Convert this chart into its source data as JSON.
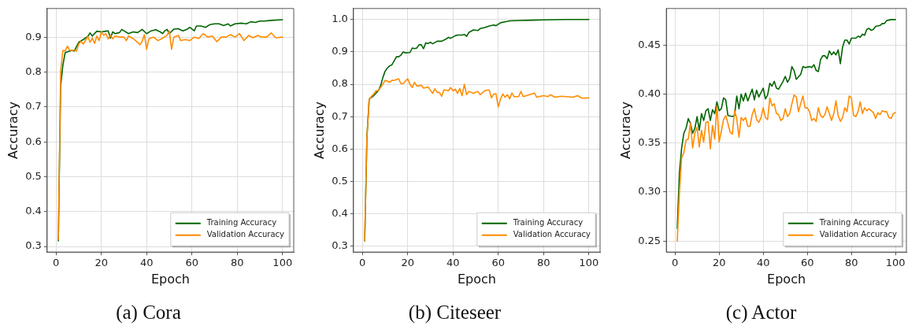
{
  "chart_data": [
    {
      "type": "line",
      "title": "(a) Cora",
      "xlabel": "Epoch",
      "ylabel": "Accuracy",
      "xlim": [
        -3.95,
        104.95
      ],
      "ylim": [
        0.284,
        0.982
      ],
      "xticks": [
        0,
        20,
        40,
        60,
        80,
        100
      ],
      "yticks": [
        {
          "value": 0.3,
          "label": "0.3"
        },
        {
          "value": 0.4,
          "label": "0.4"
        },
        {
          "value": 0.5,
          "label": "0.5"
        },
        {
          "value": 0.6,
          "label": "0.6"
        },
        {
          "value": 0.7,
          "label": "0.7"
        },
        {
          "value": 0.8,
          "label": "0.8"
        },
        {
          "value": 0.9,
          "label": "0.9"
        }
      ],
      "grid": true,
      "legend": "bottom right",
      "marker": "none",
      "line_style": "solid",
      "series": [
        {
          "name": "Training Accuracy",
          "color": "#006400",
          "x": [
            1,
            2,
            3,
            4,
            5,
            6,
            7,
            8,
            10,
            12,
            14,
            15,
            16,
            18,
            20,
            22,
            23,
            24,
            25,
            26,
            28,
            29,
            30,
            32,
            34,
            36,
            38,
            40,
            42,
            44,
            46,
            47,
            48,
            49,
            50,
            52,
            54,
            56,
            58,
            59,
            61,
            62,
            64,
            66,
            68,
            70,
            72,
            74,
            76,
            77,
            79,
            82,
            84,
            86,
            88,
            90,
            92,
            95,
            100
          ],
          "values": [
            0.316,
            0.76,
            0.82,
            0.855,
            0.858,
            0.86,
            0.862,
            0.86,
            0.885,
            0.893,
            0.902,
            0.912,
            0.903,
            0.917,
            0.915,
            0.917,
            0.918,
            0.897,
            0.915,
            0.91,
            0.913,
            0.922,
            0.918,
            0.91,
            0.915,
            0.913,
            0.922,
            0.91,
            0.918,
            0.921,
            0.915,
            0.91,
            0.918,
            0.922,
            0.91,
            0.923,
            0.924,
            0.918,
            0.923,
            0.928,
            0.918,
            0.932,
            0.932,
            0.928,
            0.936,
            0.938,
            0.938,
            0.933,
            0.938,
            0.932,
            0.938,
            0.94,
            0.938,
            0.944,
            0.942,
            0.946,
            0.946,
            0.948,
            0.95
          ]
        },
        {
          "name": "Validation Accuracy",
          "color": "#ff8c00",
          "x": [
            1,
            2,
            3,
            4,
            5,
            6,
            8,
            9,
            10,
            11,
            12,
            14,
            15,
            16,
            17,
            18,
            19,
            20,
            21,
            22,
            23,
            24,
            25,
            26,
            28,
            30,
            31,
            32,
            34,
            36,
            37,
            38,
            39,
            40,
            41,
            43,
            45,
            47,
            49,
            50,
            51,
            52,
            54,
            55,
            57,
            59,
            61,
            63,
            65,
            67,
            69,
            71,
            73,
            75,
            77,
            79,
            81,
            83,
            85,
            87,
            89,
            91,
            93,
            95,
            97,
            100
          ],
          "values": [
            0.32,
            0.8,
            0.862,
            0.86,
            0.874,
            0.862,
            0.862,
            0.86,
            0.88,
            0.888,
            0.88,
            0.902,
            0.885,
            0.897,
            0.882,
            0.903,
            0.89,
            0.915,
            0.905,
            0.91,
            0.895,
            0.905,
            0.895,
            0.903,
            0.9,
            0.9,
            0.89,
            0.903,
            0.896,
            0.885,
            0.878,
            0.888,
            0.907,
            0.865,
            0.895,
            0.9,
            0.89,
            0.897,
            0.905,
            0.918,
            0.865,
            0.9,
            0.905,
            0.89,
            0.893,
            0.89,
            0.9,
            0.896,
            0.91,
            0.9,
            0.903,
            0.887,
            0.9,
            0.9,
            0.907,
            0.9,
            0.91,
            0.89,
            0.905,
            0.898,
            0.905,
            0.9,
            0.9,
            0.912,
            0.898,
            0.9
          ]
        }
      ]
    },
    {
      "type": "line",
      "title": "(b) Citeseer",
      "xlabel": "Epoch",
      "ylabel": "Accuracy",
      "xlim": [
        -3.95,
        104.95
      ],
      "ylim": [
        0.282,
        1.034
      ],
      "xticks": [
        0,
        20,
        40,
        60,
        80,
        100
      ],
      "yticks": [
        {
          "value": 0.3,
          "label": "0.3"
        },
        {
          "value": 0.4,
          "label": "0.4"
        },
        {
          "value": 0.5,
          "label": "0.5"
        },
        {
          "value": 0.6,
          "label": "0.6"
        },
        {
          "value": 0.7,
          "label": "0.7"
        },
        {
          "value": 0.8,
          "label": "0.8"
        },
        {
          "value": 0.9,
          "label": "0.9"
        },
        {
          "value": 1.0,
          "label": "1.0"
        }
      ],
      "grid": true,
      "legend": "bottom right",
      "marker": "none",
      "line_style": "solid",
      "series": [
        {
          "name": "Training Accuracy",
          "color": "#006400",
          "x": [
            1,
            2,
            3,
            5,
            7,
            8,
            9,
            10,
            11,
            12,
            13,
            14,
            15,
            16,
            17,
            18,
            19,
            21,
            22,
            23,
            24,
            25,
            26,
            27,
            28,
            29,
            30,
            31,
            33,
            35,
            37,
            38,
            39,
            41,
            42,
            44,
            45,
            46,
            47,
            49,
            51,
            52,
            54,
            56,
            58,
            59,
            61,
            63,
            65,
            70,
            75,
            80,
            90,
            100
          ],
          "values": [
            0.316,
            0.64,
            0.755,
            0.765,
            0.78,
            0.795,
            0.82,
            0.84,
            0.85,
            0.857,
            0.86,
            0.872,
            0.885,
            0.885,
            0.89,
            0.9,
            0.897,
            0.898,
            0.912,
            0.91,
            0.912,
            0.922,
            0.922,
            0.91,
            0.928,
            0.926,
            0.93,
            0.925,
            0.933,
            0.933,
            0.94,
            0.945,
            0.942,
            0.95,
            0.952,
            0.952,
            0.954,
            0.948,
            0.96,
            0.968,
            0.966,
            0.972,
            0.975,
            0.98,
            0.983,
            0.981,
            0.99,
            0.993,
            0.996,
            0.997,
            0.998,
            0.999,
            1.0,
            1.0
          ]
        },
        {
          "name": "Validation Accuracy",
          "color": "#ff8c00",
          "x": [
            1,
            2,
            3,
            5,
            6,
            7,
            9,
            10,
            11,
            12,
            13,
            14,
            15,
            16,
            17,
            18,
            19,
            20,
            21,
            22,
            23,
            24,
            25,
            26,
            27,
            28,
            29,
            31,
            32,
            33,
            34,
            35,
            36,
            38,
            39,
            40,
            41,
            42,
            43,
            44,
            45,
            46,
            47,
            49,
            51,
            52,
            54,
            55,
            56,
            57,
            58,
            59,
            60,
            61,
            62,
            63,
            64,
            65,
            66,
            67,
            69,
            70,
            71,
            73,
            76,
            77,
            80,
            82,
            83,
            85,
            88,
            90,
            93,
            95,
            97,
            100
          ],
          "values": [
            0.316,
            0.64,
            0.755,
            0.77,
            0.78,
            0.78,
            0.8,
            0.812,
            0.81,
            0.806,
            0.812,
            0.812,
            0.815,
            0.817,
            0.802,
            0.802,
            0.81,
            0.817,
            0.8,
            0.79,
            0.806,
            0.795,
            0.795,
            0.797,
            0.788,
            0.79,
            0.792,
            0.772,
            0.786,
            0.775,
            0.775,
            0.763,
            0.783,
            0.78,
            0.79,
            0.78,
            0.785,
            0.772,
            0.787,
            0.765,
            0.8,
            0.768,
            0.778,
            0.772,
            0.778,
            0.768,
            0.78,
            0.782,
            0.782,
            0.758,
            0.77,
            0.77,
            0.73,
            0.755,
            0.77,
            0.76,
            0.768,
            0.755,
            0.773,
            0.762,
            0.762,
            0.778,
            0.762,
            0.766,
            0.773,
            0.76,
            0.765,
            0.762,
            0.768,
            0.76,
            0.763,
            0.762,
            0.76,
            0.765,
            0.757,
            0.758
          ]
        }
      ]
    },
    {
      "type": "line",
      "title": "(c) Actor",
      "xlabel": "Epoch",
      "ylabel": "Accuracy",
      "xlim": [
        -3.95,
        104.95
      ],
      "ylim": [
        0.2387,
        0.4873
      ],
      "xticks": [
        0,
        20,
        40,
        60,
        80,
        100
      ],
      "yticks": [
        {
          "value": 0.25,
          "label": "0.25"
        },
        {
          "value": 0.3,
          "label": "0.30"
        },
        {
          "value": 0.35,
          "label": "0.35"
        },
        {
          "value": 0.4,
          "label": "0.40"
        },
        {
          "value": 0.45,
          "label": "0.45"
        }
      ],
      "grid": true,
      "legend": "bottom right",
      "marker": "none",
      "line_style": "solid",
      "series": [
        {
          "name": "Training Accuracy",
          "color": "#006400",
          "x": [
            1,
            2,
            3,
            4,
            5,
            6,
            7,
            8,
            9,
            10,
            11,
            12,
            13,
            14,
            15,
            16,
            17,
            18,
            19,
            20,
            21,
            22,
            23,
            24,
            26,
            27,
            28,
            29,
            30,
            31,
            32,
            33,
            35,
            36,
            37,
            38,
            40,
            41,
            42,
            43,
            44,
            45,
            46,
            47,
            49,
            50,
            51,
            52,
            53,
            54,
            55,
            57,
            58,
            59,
            61,
            62,
            63,
            64,
            65,
            66,
            67,
            68,
            69,
            70,
            71,
            72,
            73,
            74,
            75,
            76,
            77,
            78,
            79,
            80,
            82,
            83,
            84,
            85,
            86,
            87,
            88,
            89,
            90,
            91,
            93,
            94,
            95,
            96,
            98,
            100
          ],
          "values": [
            0.263,
            0.32,
            0.345,
            0.36,
            0.365,
            0.375,
            0.37,
            0.36,
            0.365,
            0.377,
            0.363,
            0.38,
            0.373,
            0.383,
            0.385,
            0.373,
            0.384,
            0.38,
            0.392,
            0.383,
            0.385,
            0.396,
            0.394,
            0.378,
            0.377,
            0.378,
            0.398,
            0.385,
            0.4,
            0.393,
            0.401,
            0.393,
            0.405,
            0.394,
            0.404,
            0.397,
            0.406,
            0.395,
            0.399,
            0.411,
            0.408,
            0.413,
            0.406,
            0.405,
            0.413,
            0.418,
            0.412,
            0.416,
            0.428,
            0.424,
            0.415,
            0.42,
            0.428,
            0.427,
            0.428,
            0.427,
            0.43,
            0.424,
            0.423,
            0.435,
            0.439,
            0.439,
            0.436,
            0.444,
            0.44,
            0.443,
            0.44,
            0.445,
            0.431,
            0.448,
            0.455,
            0.455,
            0.451,
            0.457,
            0.457,
            0.459,
            0.458,
            0.461,
            0.46,
            0.466,
            0.467,
            0.465,
            0.466,
            0.469,
            0.47,
            0.472,
            0.472,
            0.475,
            0.476,
            0.476
          ]
        },
        {
          "name": "Validation Accuracy",
          "color": "#ff8c00",
          "x": [
            1,
            2,
            3,
            4,
            5,
            6,
            7,
            8,
            9,
            10,
            11,
            12,
            13,
            14,
            15,
            16,
            17,
            18,
            19,
            20,
            21,
            22,
            23,
            24,
            25,
            26,
            27,
            28,
            29,
            30,
            31,
            32,
            33,
            34,
            35,
            36,
            37,
            38,
            39,
            40,
            41,
            42,
            43,
            44,
            45,
            46,
            47,
            48,
            49,
            50,
            51,
            52,
            53,
            54,
            55,
            56,
            57,
            58,
            59,
            60,
            61,
            62,
            63,
            64,
            65,
            66,
            67,
            68,
            69,
            70,
            71,
            72,
            73,
            74,
            75,
            76,
            77,
            78,
            79,
            80,
            81,
            82,
            83,
            84,
            85,
            86,
            87,
            88,
            89,
            90,
            91,
            92,
            93,
            94,
            95,
            96,
            97,
            98,
            99,
            100
          ],
          "values": [
            0.25,
            0.3,
            0.335,
            0.34,
            0.353,
            0.354,
            0.37,
            0.345,
            0.36,
            0.366,
            0.346,
            0.363,
            0.351,
            0.371,
            0.372,
            0.344,
            0.368,
            0.354,
            0.388,
            0.351,
            0.362,
            0.374,
            0.378,
            0.37,
            0.361,
            0.359,
            0.383,
            0.375,
            0.356,
            0.376,
            0.373,
            0.376,
            0.367,
            0.367,
            0.379,
            0.385,
            0.374,
            0.371,
            0.376,
            0.386,
            0.376,
            0.374,
            0.396,
            0.388,
            0.39,
            0.38,
            0.379,
            0.373,
            0.375,
            0.385,
            0.377,
            0.38,
            0.39,
            0.399,
            0.397,
            0.382,
            0.39,
            0.398,
            0.386,
            0.386,
            0.382,
            0.373,
            0.375,
            0.372,
            0.386,
            0.378,
            0.376,
            0.379,
            0.387,
            0.38,
            0.373,
            0.38,
            0.393,
            0.378,
            0.372,
            0.376,
            0.386,
            0.382,
            0.398,
            0.396,
            0.378,
            0.377,
            0.382,
            0.392,
            0.38,
            0.386,
            0.383,
            0.385,
            0.383,
            0.381,
            0.375,
            0.381,
            0.379,
            0.383,
            0.382,
            0.382,
            0.376,
            0.375,
            0.38,
            0.381
          ]
        }
      ]
    }
  ]
}
